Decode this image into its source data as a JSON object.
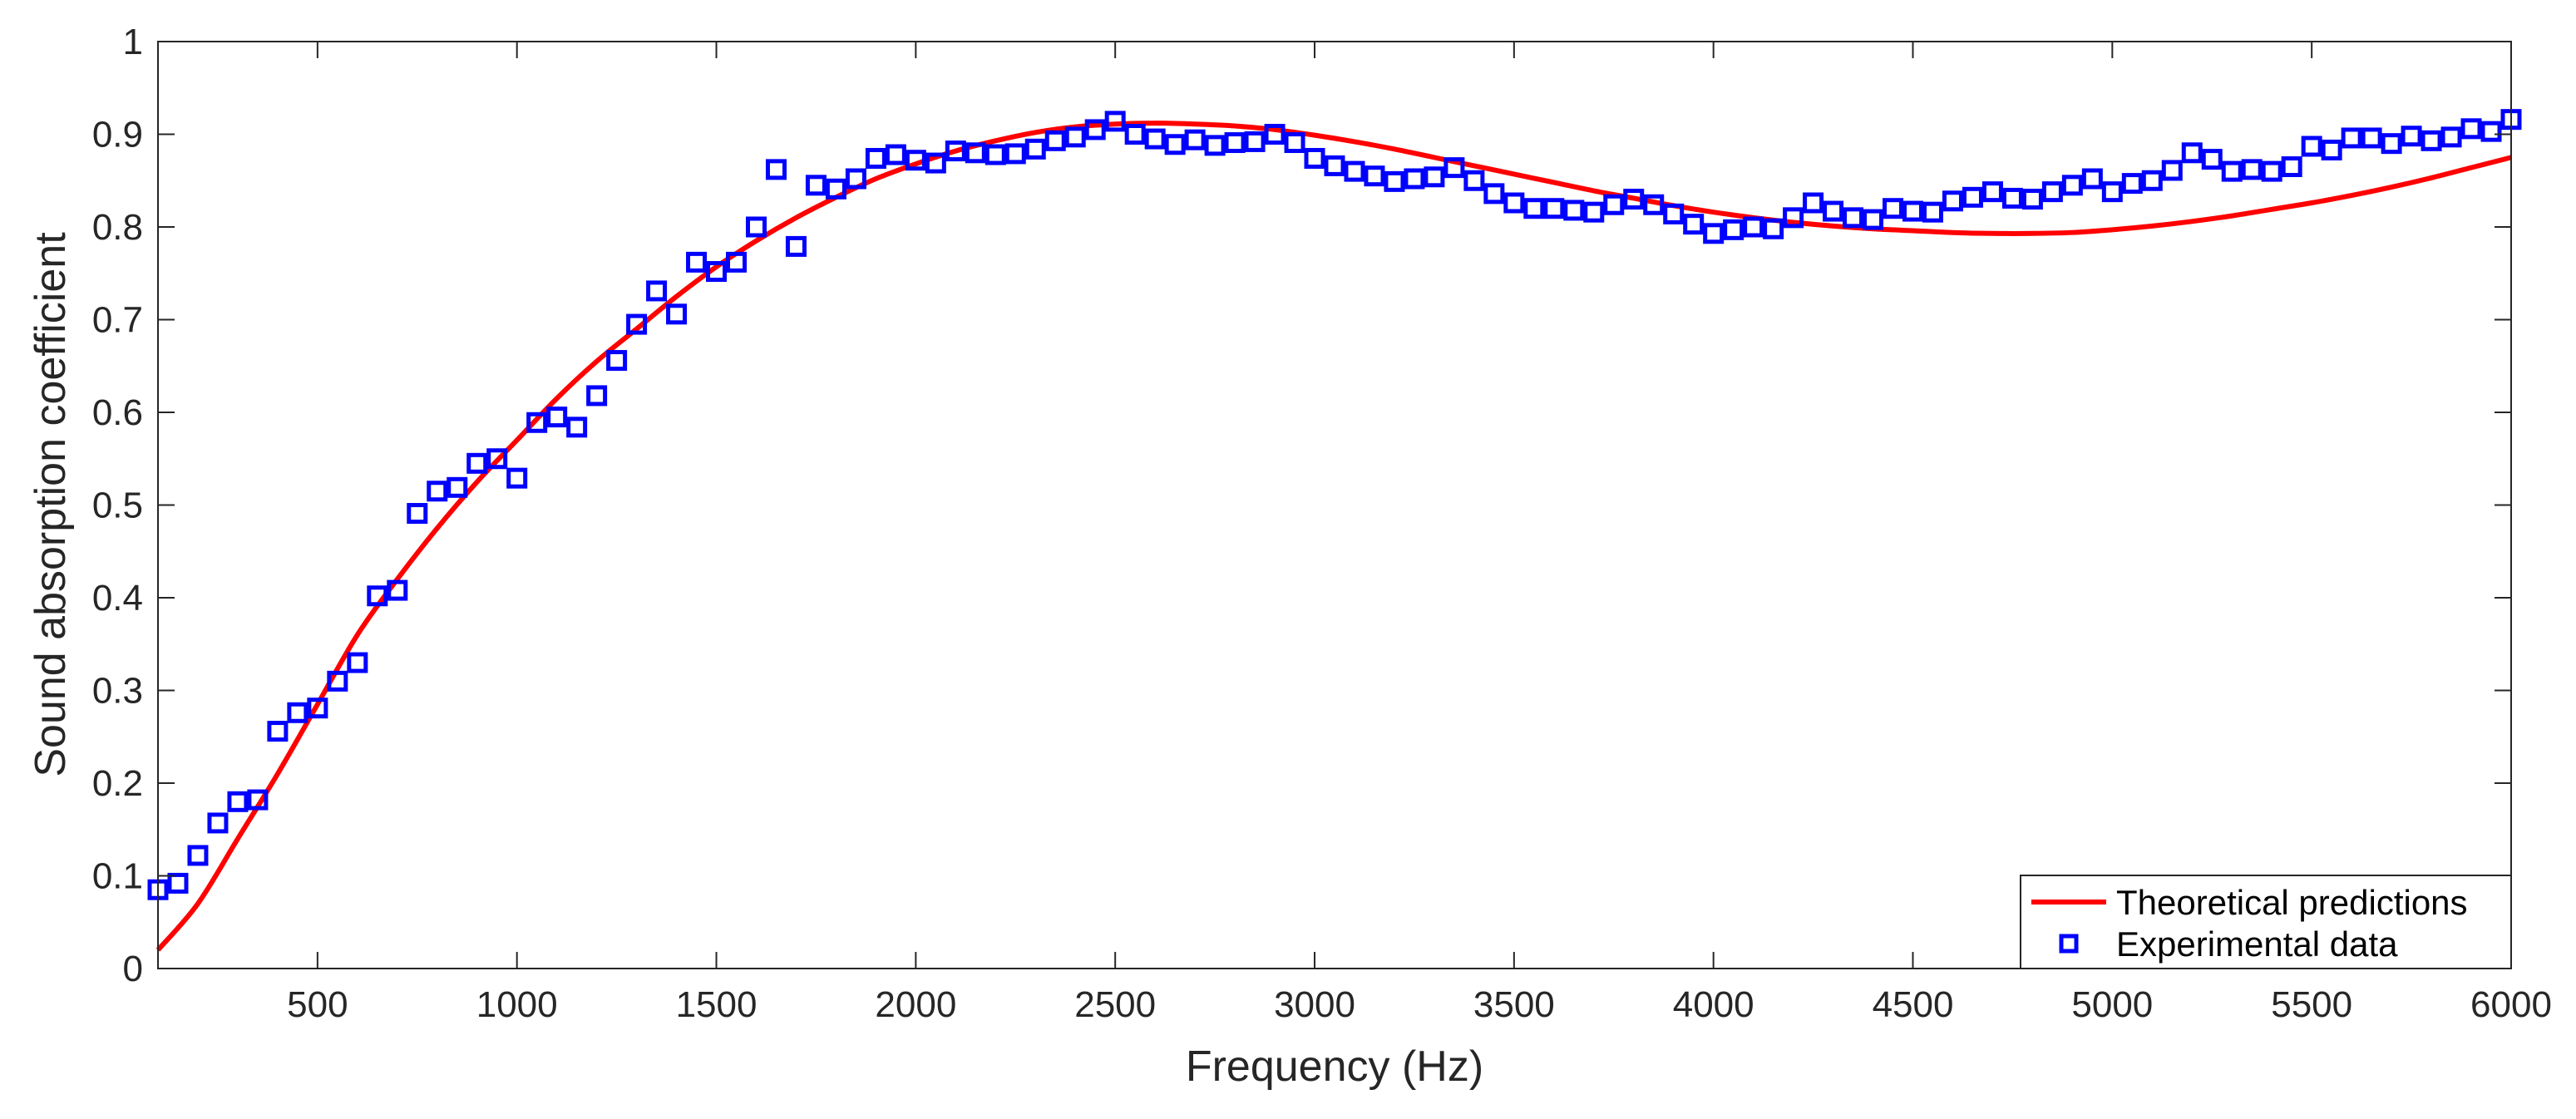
{
  "chart_data": {
    "type": "line",
    "title": "",
    "xlabel": "Frequency (Hz)",
    "ylabel": "Sound absorption coefficient",
    "xlim": [
      100,
      6000
    ],
    "ylim": [
      0,
      1
    ],
    "xticks": [
      500,
      1000,
      1500,
      2000,
      2500,
      3000,
      3500,
      4000,
      4500,
      5000,
      5500,
      6000
    ],
    "yticks": [
      0,
      0.1,
      0.2,
      0.3,
      0.4,
      0.5,
      0.6,
      0.7,
      0.8,
      0.9,
      1
    ],
    "xtick_labels": [
      "500",
      "1000",
      "1500",
      "2000",
      "2500",
      "3000",
      "3500",
      "4000",
      "4500",
      "5000",
      "5500",
      "6000"
    ],
    "ytick_labels": [
      "0",
      "0.1",
      "0.2",
      "0.3",
      "0.4",
      "0.5",
      "0.6",
      "0.7",
      "0.8",
      "0.9",
      "1"
    ],
    "grid": false,
    "legend_position": "bottom-right",
    "series": [
      {
        "name": "Theoretical predictions",
        "style": "line",
        "color": "#ff0000",
        "x": [
          100,
          200,
          300,
          400,
          500,
          600,
          700,
          800,
          900,
          1000,
          1100,
          1200,
          1300,
          1400,
          1500,
          1600,
          1700,
          1800,
          1900,
          2000,
          2100,
          2200,
          2300,
          2400,
          2500,
          2600,
          2700,
          2800,
          2900,
          3000,
          3100,
          3200,
          3300,
          3400,
          3500,
          3600,
          3700,
          3800,
          3900,
          4000,
          4100,
          4200,
          4300,
          4400,
          4500,
          4600,
          4700,
          4800,
          4900,
          5000,
          5100,
          5200,
          5300,
          5400,
          5500,
          5600,
          5700,
          5800,
          5900,
          6000
        ],
        "y": [
          0.02,
          0.07,
          0.14,
          0.21,
          0.285,
          0.36,
          0.42,
          0.475,
          0.525,
          0.57,
          0.615,
          0.655,
          0.69,
          0.725,
          0.757,
          0.785,
          0.81,
          0.832,
          0.852,
          0.868,
          0.882,
          0.893,
          0.902,
          0.908,
          0.911,
          0.912,
          0.911,
          0.909,
          0.905,
          0.899,
          0.892,
          0.884,
          0.875,
          0.866,
          0.857,
          0.848,
          0.839,
          0.831,
          0.823,
          0.816,
          0.81,
          0.805,
          0.801,
          0.798,
          0.796,
          0.794,
          0.793,
          0.793,
          0.794,
          0.797,
          0.801,
          0.806,
          0.812,
          0.819,
          0.826,
          0.834,
          0.843,
          0.853,
          0.864,
          0.875
        ]
      },
      {
        "name": "Experimental data",
        "style": "markers",
        "marker": "square",
        "color": "#0000ff",
        "x": [
          100,
          150,
          200,
          250,
          300,
          350,
          400,
          450,
          500,
          550,
          600,
          650,
          700,
          750,
          800,
          850,
          900,
          950,
          1000,
          1050,
          1100,
          1150,
          1200,
          1250,
          1300,
          1350,
          1400,
          1450,
          1500,
          1550,
          1600,
          1650,
          1700,
          1750,
          1800,
          1850,
          1900,
          1950,
          2000,
          2050,
          2100,
          2150,
          2200,
          2250,
          2300,
          2350,
          2400,
          2450,
          2500,
          2550,
          2600,
          2650,
          2700,
          2750,
          2800,
          2850,
          2900,
          2950,
          3000,
          3050,
          3100,
          3150,
          3200,
          3250,
          3300,
          3350,
          3400,
          3450,
          3500,
          3550,
          3600,
          3650,
          3700,
          3750,
          3800,
          3850,
          3900,
          3950,
          4000,
          4050,
          4100,
          4150,
          4200,
          4250,
          4300,
          4350,
          4400,
          4450,
          4500,
          4550,
          4600,
          4650,
          4700,
          4750,
          4800,
          4850,
          4900,
          4950,
          5000,
          5050,
          5100,
          5150,
          5200,
          5250,
          5300,
          5350,
          5400,
          5450,
          5500,
          5550,
          5600,
          5650,
          5700,
          5750,
          5800,
          5850,
          5900,
          5950,
          6000
        ],
        "y": [
          0.085,
          0.092,
          0.122,
          0.157,
          0.18,
          0.182,
          0.256,
          0.276,
          0.281,
          0.31,
          0.33,
          0.402,
          0.408,
          0.491,
          0.515,
          0.519,
          0.545,
          0.55,
          0.529,
          0.589,
          0.595,
          0.584,
          0.618,
          0.656,
          0.695,
          0.731,
          0.706,
          0.762,
          0.752,
          0.762,
          0.8,
          0.862,
          0.779,
          0.845,
          0.841,
          0.852,
          0.874,
          0.878,
          0.872,
          0.869,
          0.882,
          0.88,
          0.878,
          0.879,
          0.884,
          0.893,
          0.897,
          0.905,
          0.914,
          0.9,
          0.895,
          0.889,
          0.894,
          0.888,
          0.891,
          0.892,
          0.9,
          0.891,
          0.874,
          0.866,
          0.86,
          0.855,
          0.849,
          0.852,
          0.854,
          0.864,
          0.85,
          0.836,
          0.826,
          0.82,
          0.82,
          0.818,
          0.816,
          0.824,
          0.83,
          0.824,
          0.814,
          0.803,
          0.793,
          0.797,
          0.8,
          0.798,
          0.81,
          0.826,
          0.817,
          0.81,
          0.808,
          0.82,
          0.817,
          0.816,
          0.828,
          0.832,
          0.838,
          0.831,
          0.83,
          0.838,
          0.845,
          0.852,
          0.838,
          0.847,
          0.85,
          0.861,
          0.88,
          0.873,
          0.86,
          0.862,
          0.86,
          0.865,
          0.887,
          0.883,
          0.896,
          0.896,
          0.89,
          0.898,
          0.893,
          0.897,
          0.906,
          0.903,
          0.916
        ]
      }
    ]
  }
}
